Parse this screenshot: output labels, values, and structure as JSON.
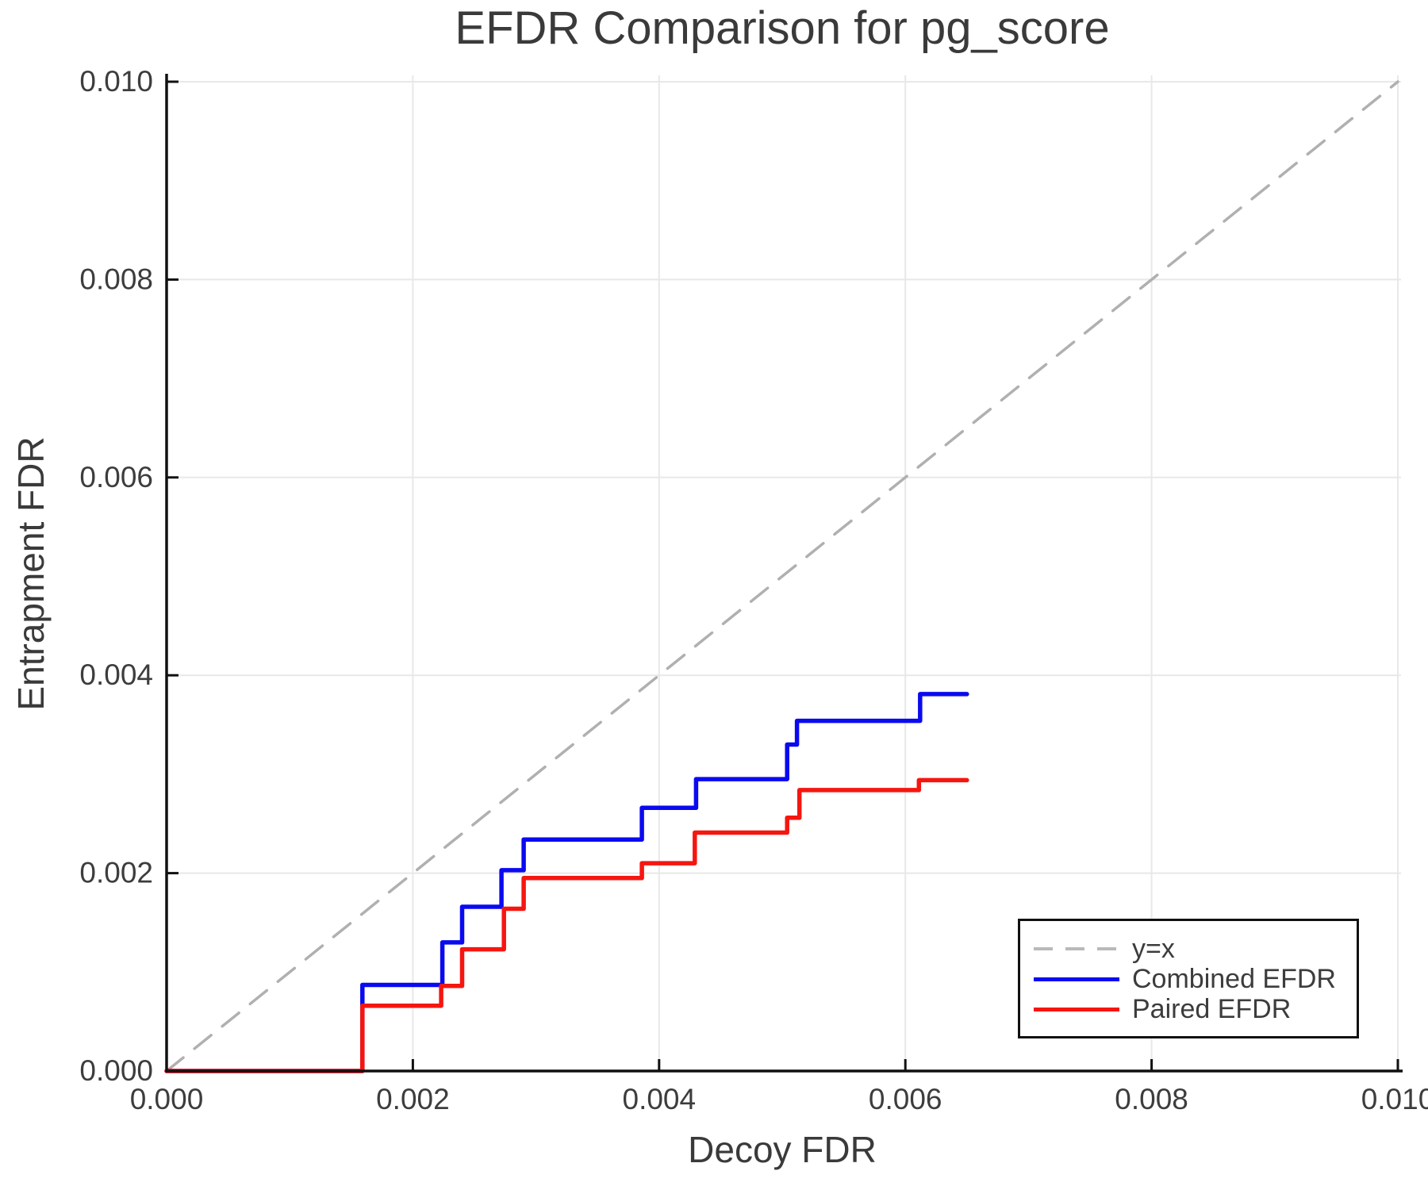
{
  "chart_data": {
    "type": "line",
    "title": "EFDR Comparison for pg_score",
    "xlabel": "Decoy FDR",
    "ylabel": "Entrapment FDR",
    "xlim": [
      0.0,
      0.01
    ],
    "ylim": [
      0.0,
      0.01
    ],
    "xticks": [
      0.0,
      0.002,
      0.004,
      0.006,
      0.008,
      0.01
    ],
    "yticks": [
      0.0,
      0.002,
      0.004,
      0.006,
      0.008,
      0.01
    ],
    "x_tick_labels": [
      "0.000",
      "0.002",
      "0.004",
      "0.006",
      "0.008",
      "0.010"
    ],
    "y_tick_labels": [
      "0.000",
      "0.002",
      "0.004",
      "0.006",
      "0.008",
      "0.010"
    ],
    "grid": true,
    "legend_position": "lower right",
    "series": [
      {
        "name": "y=x",
        "style": "dashed",
        "color": "#b0b0b0",
        "points": [
          [
            0.0,
            0.0
          ],
          [
            0.01,
            0.01
          ]
        ]
      },
      {
        "name": "Combined EFDR",
        "style": "solid",
        "color": "#0a0af0",
        "points": [
          [
            0.0,
            0.0
          ],
          [
            0.00159,
            0.0
          ],
          [
            0.00159,
            0.00087
          ],
          [
            0.00224,
            0.00087
          ],
          [
            0.00224,
            0.0013
          ],
          [
            0.0024,
            0.0013
          ],
          [
            0.0024,
            0.00166
          ],
          [
            0.00272,
            0.00166
          ],
          [
            0.00272,
            0.00203
          ],
          [
            0.0029,
            0.00203
          ],
          [
            0.0029,
            0.00234
          ],
          [
            0.00386,
            0.00234
          ],
          [
            0.00386,
            0.00266
          ],
          [
            0.0043,
            0.00266
          ],
          [
            0.0043,
            0.00295
          ],
          [
            0.00504,
            0.00295
          ],
          [
            0.00504,
            0.0033
          ],
          [
            0.00512,
            0.0033
          ],
          [
            0.00512,
            0.00354
          ],
          [
            0.00612,
            0.00354
          ],
          [
            0.00612,
            0.00381
          ],
          [
            0.0065,
            0.00381
          ]
        ]
      },
      {
        "name": "Paired EFDR",
        "style": "solid",
        "color": "#f51610",
        "points": [
          [
            0.0,
            0.0
          ],
          [
            0.00159,
            0.0
          ],
          [
            0.00159,
            0.00066
          ],
          [
            0.00223,
            0.00066
          ],
          [
            0.00223,
            0.00086
          ],
          [
            0.0024,
            0.00086
          ],
          [
            0.0024,
            0.00123
          ],
          [
            0.00274,
            0.00123
          ],
          [
            0.00274,
            0.00164
          ],
          [
            0.0029,
            0.00164
          ],
          [
            0.0029,
            0.00195
          ],
          [
            0.00386,
            0.00195
          ],
          [
            0.00386,
            0.0021
          ],
          [
            0.00429,
            0.0021
          ],
          [
            0.00429,
            0.00241
          ],
          [
            0.00504,
            0.00241
          ],
          [
            0.00504,
            0.00256
          ],
          [
            0.00514,
            0.00256
          ],
          [
            0.00514,
            0.00284
          ],
          [
            0.00611,
            0.00284
          ],
          [
            0.00611,
            0.00294
          ],
          [
            0.0065,
            0.00294
          ]
        ]
      }
    ]
  }
}
